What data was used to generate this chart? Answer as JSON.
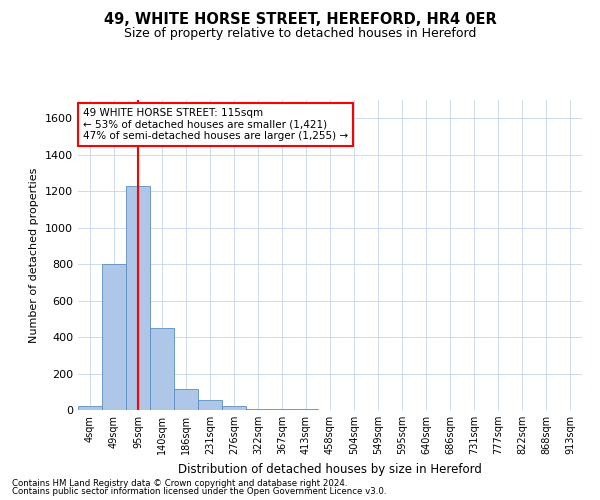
{
  "title": "49, WHITE HORSE STREET, HEREFORD, HR4 0ER",
  "subtitle": "Size of property relative to detached houses in Hereford",
  "xlabel": "Distribution of detached houses by size in Hereford",
  "ylabel": "Number of detached properties",
  "footer_line1": "Contains HM Land Registry data © Crown copyright and database right 2024.",
  "footer_line2": "Contains public sector information licensed under the Open Government Licence v3.0.",
  "bin_labels": [
    "4sqm",
    "49sqm",
    "95sqm",
    "140sqm",
    "186sqm",
    "231sqm",
    "276sqm",
    "322sqm",
    "367sqm",
    "413sqm",
    "458sqm",
    "504sqm",
    "549sqm",
    "595sqm",
    "640sqm",
    "686sqm",
    "731sqm",
    "777sqm",
    "822sqm",
    "868sqm",
    "913sqm"
  ],
  "bar_values": [
    20,
    800,
    1230,
    450,
    115,
    55,
    20,
    8,
    5,
    3,
    2,
    2,
    2,
    1,
    1,
    1,
    1,
    1,
    0,
    0,
    0
  ],
  "bar_color": "#aec6e8",
  "bar_edge_color": "#5a8fc0",
  "red_line_x": 2,
  "annotation_line1": "49 WHITE HORSE STREET: 115sqm",
  "annotation_line2": "← 53% of detached houses are smaller (1,421)",
  "annotation_line3": "47% of semi-detached houses are larger (1,255) →",
  "ylim": [
    0,
    1700
  ],
  "yticks": [
    0,
    200,
    400,
    600,
    800,
    1000,
    1200,
    1400,
    1600
  ],
  "background_color": "#ffffff",
  "grid_color": "#c8d4e8"
}
